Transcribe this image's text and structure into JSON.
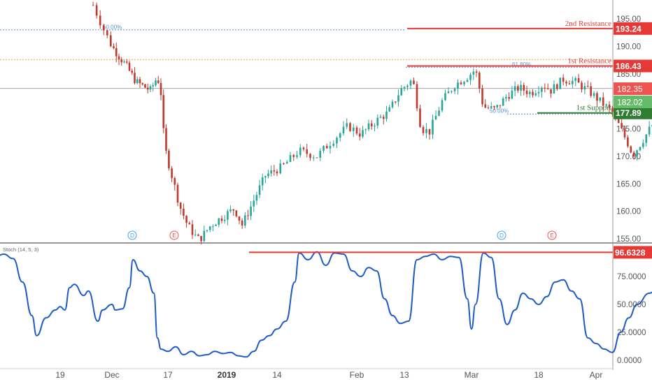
{
  "chart_data": [
    {
      "type": "candlestick",
      "panel": "price",
      "ylim": [
        154,
        197
      ],
      "y_ticks": [
        "155.00",
        "160.00",
        "165.00",
        "170.00",
        "175.00",
        "180.00",
        "185.00",
        "190.00",
        "195.00"
      ],
      "x_ticks": [
        "19",
        "Dec",
        "17",
        "2019",
        "14",
        "Feb",
        "13",
        "Mar",
        "18",
        "Apr"
      ],
      "grid": false,
      "anchors": [
        [
          "Nov 26",
          197.5
        ],
        [
          "Nov 28",
          193.5
        ],
        [
          "Nov 30",
          190.0
        ],
        [
          "Dec 4",
          186.5
        ],
        [
          "Dec 7",
          183.5
        ],
        [
          "Dec 11",
          182.0
        ],
        [
          "Dec 13",
          184.5
        ],
        [
          "Dec 14",
          181.5
        ],
        [
          "Dec 15",
          172.0
        ],
        [
          "Dec 17",
          166.5
        ],
        [
          "Dec 19",
          161.0
        ],
        [
          "Dec 21",
          157.5
        ],
        [
          "Dec 23",
          155.5
        ],
        [
          "Dec 24",
          154.8
        ],
        [
          "Dec 27",
          157.5
        ],
        [
          "Dec 30",
          159.0
        ],
        [
          "Jan 2",
          160.5
        ],
        [
          "Jan 4",
          157.5
        ],
        [
          "Jan 7",
          162.0
        ],
        [
          "Jan 10",
          166.5
        ],
        [
          "Jan 14",
          168.0
        ],
        [
          "Jan 18",
          171.0
        ],
        [
          "Jan 22",
          170.0
        ],
        [
          "Jan 25",
          172.5
        ],
        [
          "Jan 29",
          175.5
        ],
        [
          "Feb 1",
          174.0
        ],
        [
          "Feb 5",
          176.5
        ],
        [
          "Feb 8",
          178.0
        ],
        [
          "Feb 11",
          182.0
        ],
        [
          "Feb 14",
          184.0
        ],
        [
          "Feb 16",
          175.0
        ],
        [
          "Feb 18",
          174.5
        ],
        [
          "Feb 21",
          180.0
        ],
        [
          "Feb 24",
          183.0
        ],
        [
          "Feb 27",
          184.5
        ],
        [
          "Mar 1",
          185.8
        ],
        [
          "Mar 3",
          179.0
        ],
        [
          "Mar 6",
          178.5
        ],
        [
          "Mar 9",
          181.0
        ],
        [
          "Mar 12",
          182.5
        ],
        [
          "Mar 15",
          181.5
        ],
        [
          "Mar 18",
          183.0
        ],
        [
          "Mar 20",
          182.0
        ],
        [
          "Mar 23",
          184.0
        ],
        [
          "Mar 26",
          183.5
        ],
        [
          "Mar 29",
          182.0
        ],
        [
          "Apr 1",
          180.0
        ],
        [
          "Apr 4",
          178.0
        ],
        [
          "Apr 6",
          175.0
        ],
        [
          "Apr 8",
          172.0
        ],
        [
          "Apr 9",
          170.2
        ],
        [
          "Apr 11",
          172.5
        ],
        [
          "Apr 14",
          176.0
        ],
        [
          "Apr 17",
          179.0
        ],
        [
          "Apr 20",
          180.0
        ],
        [
          "Apr 22",
          179.5
        ],
        [
          "Apr 24",
          180.5
        ],
        [
          "Apr 27",
          182.0
        ]
      ],
      "levels": [
        {
          "label": "2nd Resistance",
          "value": 193.24,
          "value_label": "193.24",
          "color": "#e53935"
        },
        {
          "label": "1st Resistance",
          "value": 186.43,
          "value_label": "186.43",
          "color": "#e53935"
        },
        {
          "label": "1st Support",
          "value": 177.89,
          "value_label": "177.89",
          "color": "#2e7d32"
        }
      ],
      "fib_lines": [
        {
          "label": "50.00%",
          "value": 193.0,
          "color": "#5b8fd6"
        },
        {
          "label": "61.80%",
          "value": 186.2,
          "color": "#5b8fd6"
        },
        {
          "label": "50.00%",
          "value": 177.7,
          "color": "#5b8fd6"
        }
      ],
      "horizontal_lines": [
        {
          "value": 187.6,
          "color": "#f0a030",
          "style": "dotted"
        },
        {
          "value": 182.35,
          "color": "#aaaaaa",
          "style": "solid"
        }
      ],
      "price_tags": [
        {
          "value": 182.35,
          "label": "182.35",
          "color": "#ef5350"
        },
        {
          "value": 182.02,
          "label": "182.02",
          "color": "#66bb6a"
        }
      ],
      "event_markers": [
        {
          "label": "D",
          "date": "Nov 28",
          "color": "#42a5f5"
        },
        {
          "label": "E",
          "date": "Dec 11",
          "color": "#ef5350"
        },
        {
          "label": "D",
          "date": "Apr 9",
          "color": "#42a5f5"
        },
        {
          "label": "E",
          "date": "Apr 22",
          "color": "#ef5350"
        }
      ],
      "projection_arrow": {
        "from": [
          "Apr 12",
          186.43
        ],
        "to": [
          "Apr 20",
          177.89
        ],
        "color": "#e53935"
      }
    },
    {
      "type": "line",
      "panel": "stochastic",
      "title": "Stoch (14, 5, 3)",
      "ylim": [
        -3,
        103
      ],
      "y_ticks": [
        "0.0000",
        "25.0000",
        "50.0000",
        "75.0000"
      ],
      "series": [
        {
          "color": "#1e5bc6",
          "points": [
            [
              "Nov 1",
              75.0
            ],
            [
              "Nov 3",
              80.0
            ],
            [
              "Nov 5",
              92.0
            ],
            [
              "Nov 7",
              95.0
            ],
            [
              "Nov 9",
              91.0
            ],
            [
              "Nov 11",
              70.0
            ],
            [
              "Nov 13",
              40.0
            ],
            [
              "Nov 14",
              22.0
            ],
            [
              "Nov 16",
              38.0
            ],
            [
              "Nov 18",
              45.0
            ],
            [
              "Nov 19",
              48.0
            ],
            [
              "Nov 20",
              45.0
            ],
            [
              "Nov 21",
              65.0
            ],
            [
              "Nov 22",
              68.0
            ],
            [
              "Nov 24",
              58.0
            ],
            [
              "Nov 25",
              62.0
            ],
            [
              "Nov 27",
              35.0
            ],
            [
              "Nov 28",
              45.0
            ],
            [
              "Nov 30",
              50.0
            ],
            [
              "Dec 1",
              45.0
            ],
            [
              "Dec 3",
              46.0
            ],
            [
              "Dec 5",
              65.0
            ],
            [
              "Dec 6",
              90.0
            ],
            [
              "Dec 8",
              80.0
            ],
            [
              "Dec 10",
              75.0
            ],
            [
              "Dec 12",
              60.0
            ],
            [
              "Dec 13",
              20.0
            ],
            [
              "Dec 14",
              10.0
            ],
            [
              "Dec 16",
              8.0
            ],
            [
              "Dec 18",
              12.0
            ],
            [
              "Dec 20",
              5.0
            ],
            [
              "Dec 22",
              8.0
            ],
            [
              "Dec 24",
              4.0
            ],
            [
              "Dec 26",
              5.0
            ],
            [
              "Dec 28",
              8.0
            ],
            [
              "Dec 30",
              6.0
            ],
            [
              "Jan 1",
              7.0
            ],
            [
              "Jan 3",
              4.0
            ],
            [
              "Jan 5",
              3.0
            ],
            [
              "Jan 7",
              8.0
            ],
            [
              "Jan 9",
              18.0
            ],
            [
              "Jan 11",
              22.0
            ],
            [
              "Jan 13",
              28.0
            ],
            [
              "Jan 15",
              35.0
            ],
            [
              "Jan 17",
              70.0
            ],
            [
              "Jan 18",
              96.0
            ],
            [
              "Jan 20",
              90.0
            ],
            [
              "Jan 22",
              97.0
            ],
            [
              "Jan 24",
              85.0
            ],
            [
              "Jan 26",
              96.0
            ],
            [
              "Jan 28",
              95.0
            ],
            [
              "Jan 30",
              80.0
            ],
            [
              "Feb 1",
              75.0
            ],
            [
              "Feb 3",
              83.0
            ],
            [
              "Feb 5",
              80.0
            ],
            [
              "Feb 7",
              55.0
            ],
            [
              "Feb 9",
              40.0
            ],
            [
              "Feb 11",
              33.0
            ],
            [
              "Feb 13",
              35.0
            ],
            [
              "Feb 15",
              90.0
            ],
            [
              "Feb 17",
              93.0
            ],
            [
              "Feb 19",
              95.0
            ],
            [
              "Feb 21",
              90.0
            ],
            [
              "Feb 23",
              93.0
            ],
            [
              "Feb 25",
              92.0
            ],
            [
              "Feb 27",
              55.0
            ],
            [
              "Feb 28",
              28.0
            ],
            [
              "Mar 1",
              50.0
            ],
            [
              "Mar 3",
              96.0
            ],
            [
              "Mar 5",
              92.0
            ],
            [
              "Mar 7",
              55.0
            ],
            [
              "Mar 9",
              32.0
            ],
            [
              "Mar 11",
              45.0
            ],
            [
              "Mar 13",
              60.0
            ],
            [
              "Mar 15",
              55.0
            ],
            [
              "Mar 17",
              50.0
            ],
            [
              "Mar 19",
              57.0
            ],
            [
              "Mar 21",
              70.0
            ],
            [
              "Mar 23",
              72.0
            ],
            [
              "Mar 25",
              62.0
            ],
            [
              "Mar 27",
              55.0
            ],
            [
              "Mar 29",
              20.0
            ],
            [
              "Mar 31",
              15.0
            ],
            [
              "Apr 2",
              10.0
            ],
            [
              "Apr 4",
              7.0
            ],
            [
              "Apr 6",
              25.0
            ],
            [
              "Apr 8",
              38.0
            ],
            [
              "Apr 10",
              50.0
            ],
            [
              "Apr 13",
              60.0
            ],
            [
              "Apr 16",
              70.0
            ],
            [
              "Apr 19",
              80.0
            ],
            [
              "Apr 22",
              92.0
            ],
            [
              "Apr 23",
              96.6
            ]
          ]
        }
      ],
      "levels": [
        {
          "value": 96.6328,
          "label": "96.6328",
          "color": "#e53935"
        }
      ]
    }
  ],
  "colors": {
    "candle_up": "#26a69a",
    "candle_down": "#c0392b",
    "axis_text": "#555555"
  }
}
